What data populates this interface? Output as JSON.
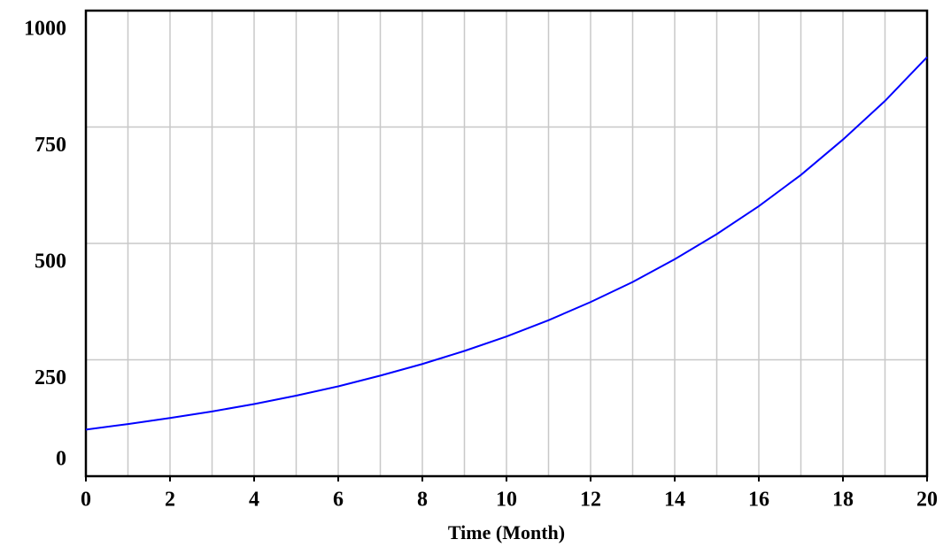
{
  "chart_data": {
    "type": "line",
    "x_label": "Time (Month)",
    "x": [
      0,
      1,
      2,
      3,
      4,
      5,
      6,
      7,
      8,
      9,
      10,
      11,
      12,
      13,
      14,
      15,
      16,
      17,
      18,
      19,
      20
    ],
    "series": [
      {
        "color": "#0000ff",
        "values": [
          100,
          112,
          125,
          139,
          155,
          173,
          193,
          216,
          241,
          269,
          300,
          335,
          374,
          417,
          466,
          520,
          580,
          647,
          723,
          806,
          900
        ]
      }
    ],
    "xlim": [
      0,
      20
    ],
    "xticks": [
      0,
      2,
      4,
      6,
      8,
      10,
      12,
      14,
      16,
      18,
      20
    ],
    "x_grid": [
      0,
      1,
      2,
      3,
      4,
      5,
      6,
      7,
      8,
      9,
      10,
      11,
      12,
      13,
      14,
      15,
      16,
      17,
      18,
      19,
      20
    ],
    "ylim": [
      0,
      1000
    ],
    "yticks": [
      0,
      250,
      500,
      750,
      1000
    ],
    "grid": true
  }
}
